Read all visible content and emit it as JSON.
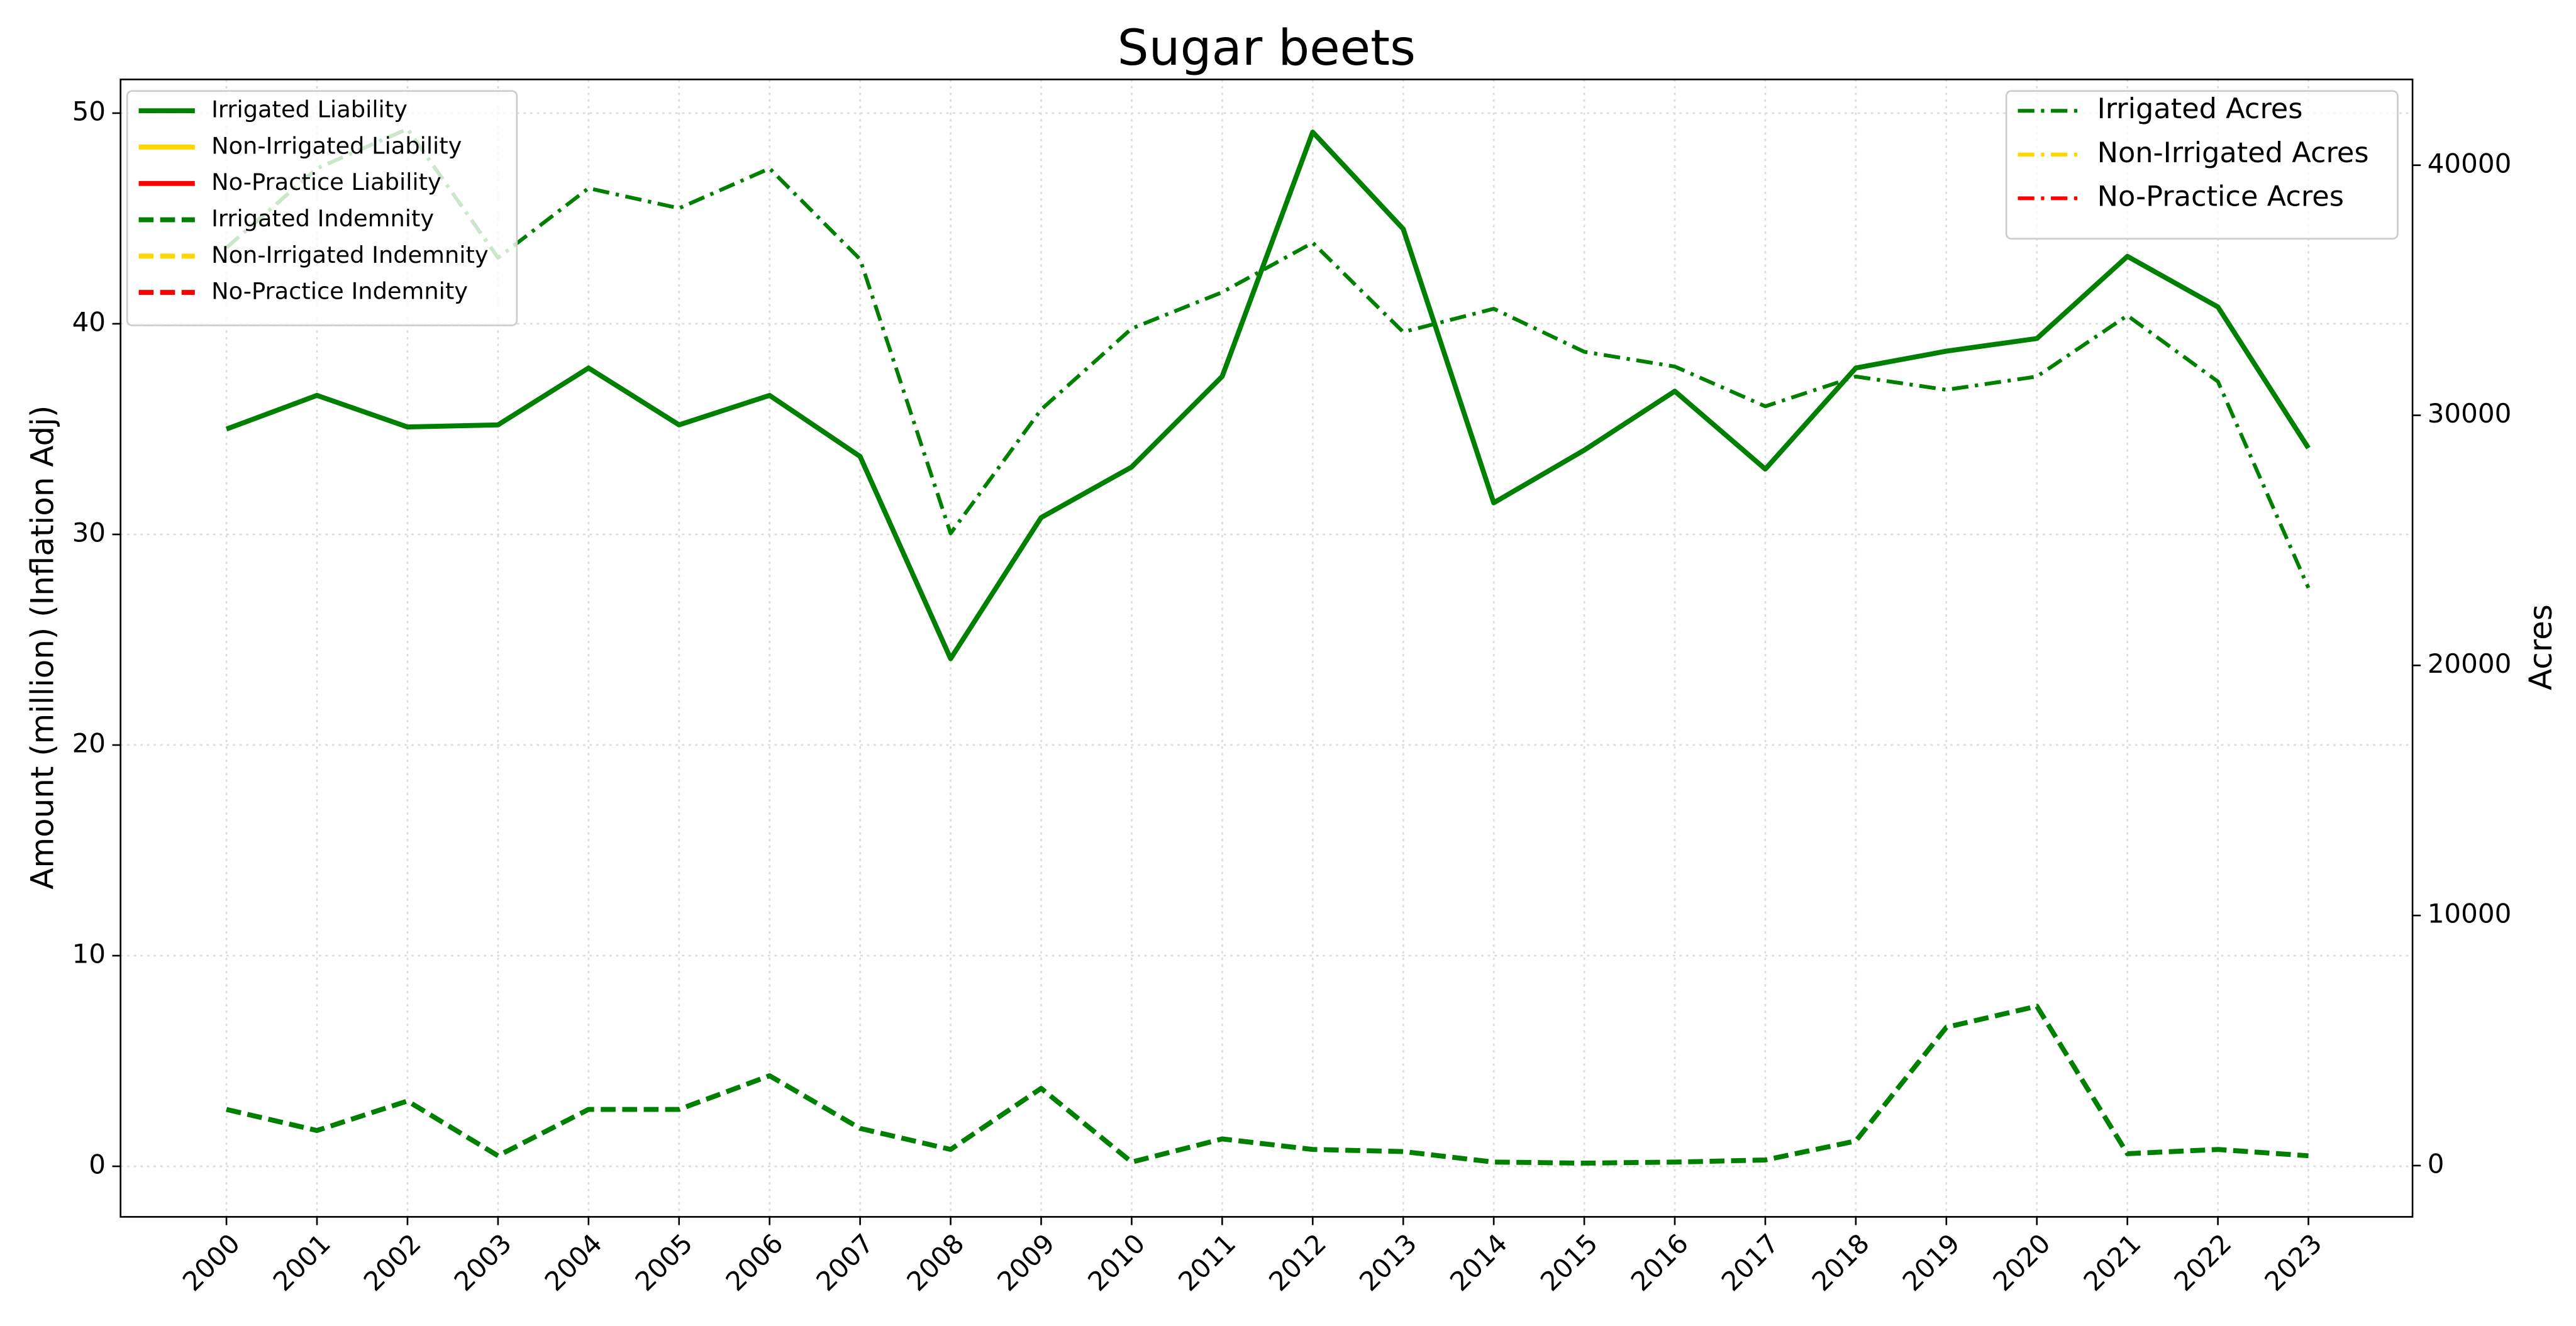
{
  "chart_data": {
    "type": "line",
    "title": "Sugar beets",
    "ylabel": "Amount (million) (Inflation Adj)",
    "y2label": "Acres",
    "x": [
      2000,
      2001,
      2002,
      2003,
      2004,
      2005,
      2006,
      2007,
      2008,
      2009,
      2010,
      2011,
      2012,
      2013,
      2014,
      2015,
      2016,
      2017,
      2018,
      2019,
      2020,
      2021,
      2022,
      2023
    ],
    "xlim": [
      1998.83,
      2024.15
    ],
    "xticks": [
      2000,
      2001,
      2002,
      2003,
      2004,
      2005,
      2006,
      2007,
      2008,
      2009,
      2010,
      2011,
      2012,
      2013,
      2014,
      2015,
      2016,
      2017,
      2018,
      2019,
      2020,
      2021,
      2022,
      2023
    ],
    "ylim": [
      -2.4,
      51.6
    ],
    "yticks": [
      0,
      10,
      20,
      30,
      40,
      50
    ],
    "y2lim": [
      -2050,
      43430
    ],
    "y2ticks": [
      0,
      10000,
      20000,
      30000,
      40000
    ],
    "grid": true,
    "legend": "upper left",
    "legend2": "upper right",
    "series": [
      {
        "name": "Irrigated Liability",
        "color": "green",
        "style": "solid",
        "values": [
          35.0,
          36.6,
          35.1,
          35.2,
          37.9,
          35.2,
          36.6,
          33.7,
          24.1,
          30.8,
          33.2,
          37.5,
          49.1,
          44.5,
          31.5,
          34.0,
          36.8,
          33.1,
          37.9,
          38.7,
          39.3,
          43.2,
          40.8,
          34.1
        ]
      },
      {
        "name": "Non-Irrigated Liability",
        "color": "gold",
        "style": "solid",
        "values": [
          null,
          null,
          null,
          null,
          null,
          null,
          null,
          null,
          null,
          null,
          null,
          null,
          null,
          null,
          null,
          null,
          null,
          null,
          null,
          null,
          null,
          null,
          null,
          null
        ]
      },
      {
        "name": "No-Practice Liability",
        "color": "red",
        "style": "solid",
        "values": [
          null,
          null,
          null,
          null,
          null,
          null,
          null,
          null,
          null,
          null,
          null,
          null,
          null,
          null,
          null,
          null,
          null,
          null,
          null,
          null,
          null,
          null,
          null,
          null
        ]
      },
      {
        "name": "Irrigated Indemnity",
        "color": "green",
        "style": "dashed",
        "values": [
          2.7,
          1.7,
          3.1,
          0.5,
          2.7,
          2.7,
          4.3,
          1.8,
          0.8,
          3.7,
          0.2,
          1.3,
          0.8,
          0.7,
          0.2,
          0.15,
          0.2,
          0.3,
          1.2,
          6.6,
          7.6,
          0.6,
          0.8,
          0.5
        ]
      },
      {
        "name": "Non-Irrigated Indemnity",
        "color": "gold",
        "style": "dashed",
        "values": [
          null,
          null,
          null,
          null,
          null,
          null,
          null,
          null,
          null,
          null,
          null,
          null,
          null,
          null,
          null,
          null,
          null,
          null,
          null,
          null,
          null,
          null,
          null,
          null
        ]
      },
      {
        "name": "No-Practice Indemnity",
        "color": "red",
        "style": "dashed",
        "values": [
          null,
          null,
          null,
          null,
          null,
          null,
          null,
          null,
          null,
          null,
          null,
          null,
          null,
          null,
          null,
          null,
          null,
          null,
          null,
          null,
          null,
          null,
          null,
          null
        ]
      },
      {
        "name": "Irrigated Acres",
        "color": "green",
        "style": "dashdot",
        "axis": "y2",
        "values": [
          36700,
          39870,
          41450,
          36300,
          39080,
          38280,
          39870,
          36240,
          25280,
          30230,
          33470,
          34920,
          36900,
          33330,
          34260,
          32540,
          31950,
          30360,
          31550,
          31020,
          31550,
          33990,
          31350,
          23100
        ]
      },
      {
        "name": "Non-Irrigated Acres",
        "color": "gold",
        "style": "dashdot",
        "axis": "y2",
        "values": [
          null,
          null,
          null,
          null,
          null,
          null,
          null,
          null,
          null,
          null,
          null,
          null,
          null,
          null,
          null,
          null,
          null,
          null,
          null,
          null,
          null,
          null,
          null,
          null
        ]
      },
      {
        "name": "No-Practice Acres",
        "color": "red",
        "style": "dashdot",
        "axis": "y2",
        "values": [
          null,
          null,
          null,
          null,
          null,
          null,
          null,
          null,
          null,
          null,
          null,
          null,
          null,
          null,
          null,
          null,
          null,
          null,
          null,
          null,
          null,
          null,
          null,
          null
        ]
      }
    ]
  }
}
